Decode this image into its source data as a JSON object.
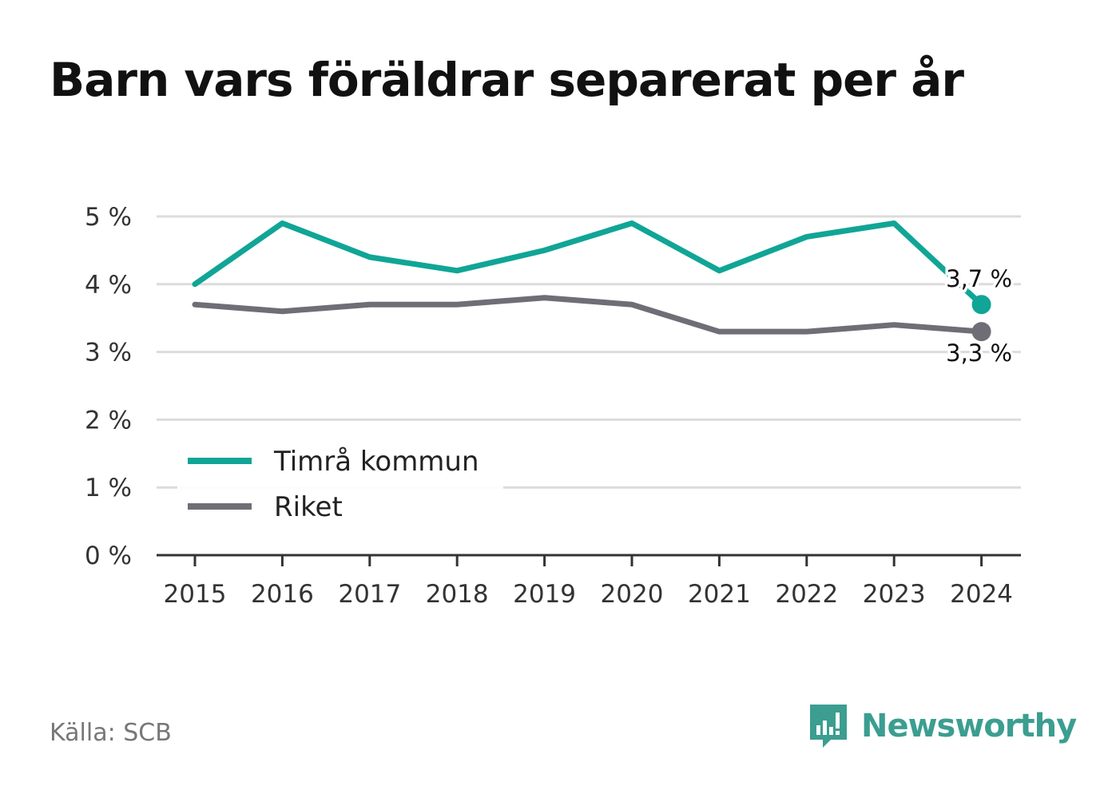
{
  "chart_data": {
    "type": "line",
    "title": "Barn vars föräldrar separerat per år",
    "categories": [
      "2015",
      "2016",
      "2017",
      "2018",
      "2019",
      "2020",
      "2021",
      "2022",
      "2023",
      "2024"
    ],
    "y_ticks": [
      "0 %",
      "1 %",
      "2 %",
      "3 %",
      "4 %",
      "5 %"
    ],
    "ylim": [
      0,
      5
    ],
    "grid": true,
    "legend_position": "bottom-left",
    "series": [
      {
        "name": "Timrå kommun",
        "color": "#10a596",
        "values": [
          4.0,
          4.9,
          4.4,
          4.2,
          4.5,
          4.9,
          4.2,
          4.7,
          4.9,
          3.7
        ],
        "end_label": "3,7 %"
      },
      {
        "name": "Riket",
        "color": "#6f6e76",
        "values": [
          3.7,
          3.6,
          3.7,
          3.7,
          3.8,
          3.7,
          3.3,
          3.3,
          3.4,
          3.3
        ],
        "end_label": "3,3 %"
      }
    ]
  },
  "footer": {
    "source": "Källa: SCB",
    "brand": "Newsworthy",
    "brand_color": "#3b9e90",
    "brand_icon": "newsworthy-logo-icon"
  }
}
